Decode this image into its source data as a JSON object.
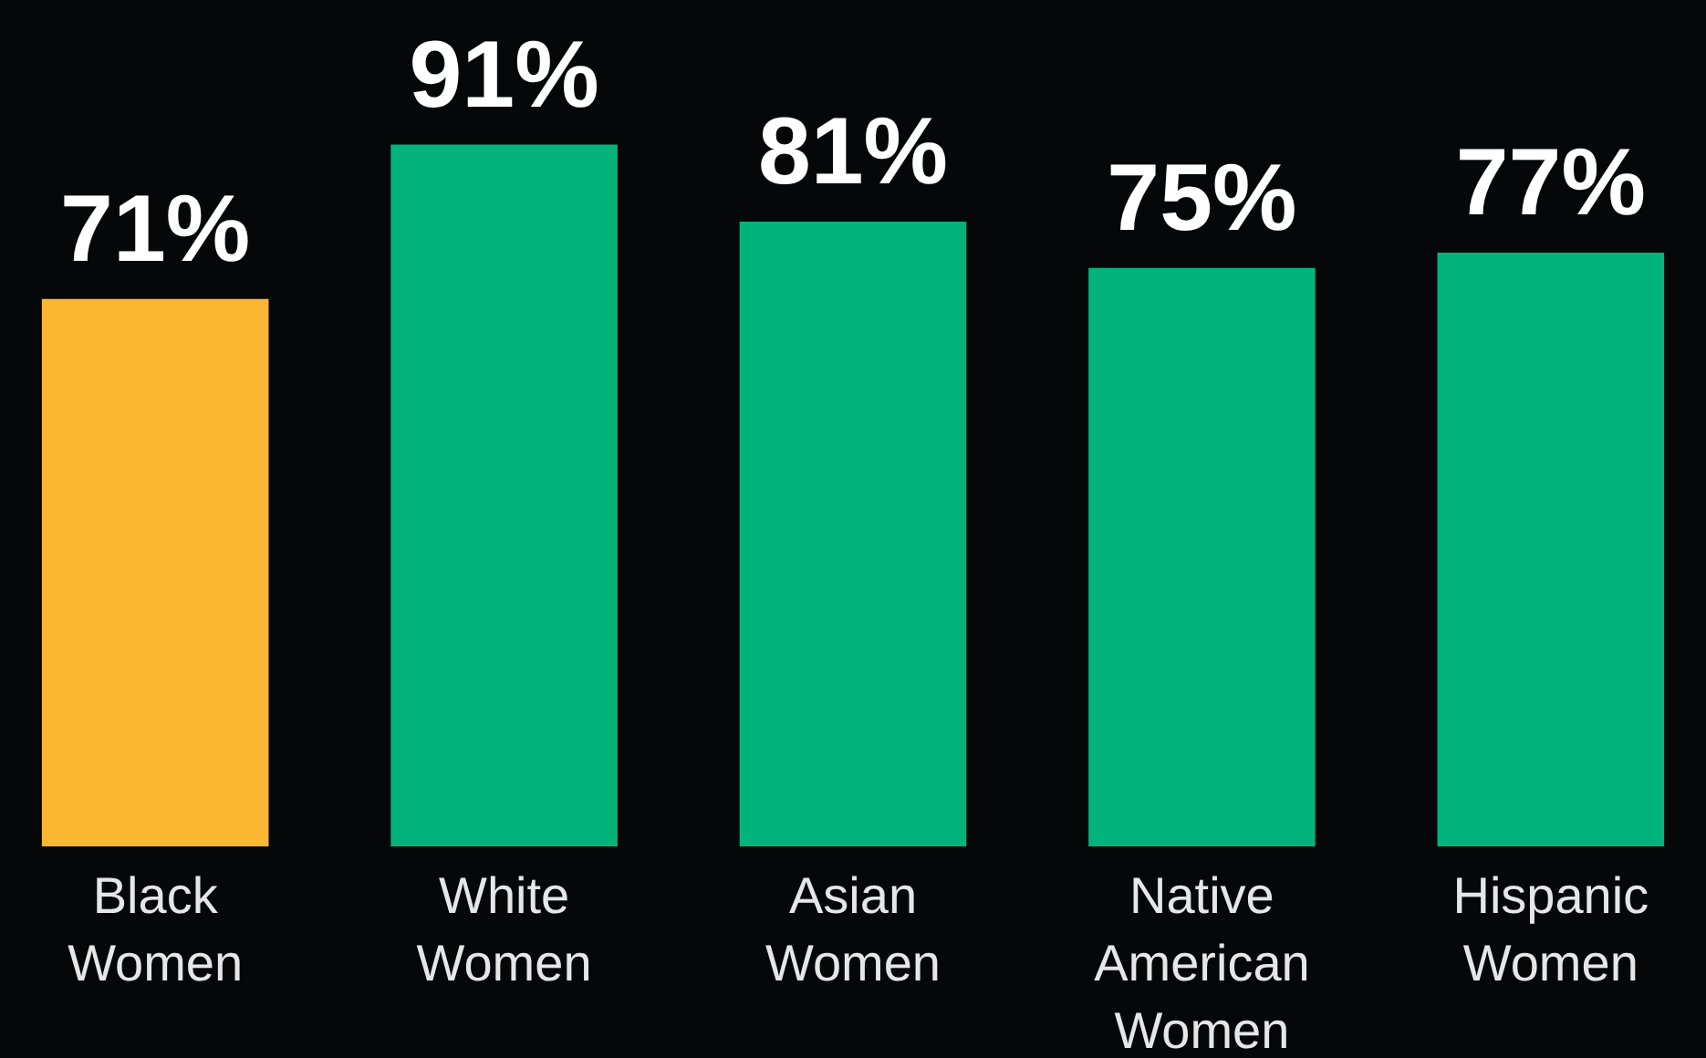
{
  "chart_data": {
    "type": "bar",
    "categories": [
      "Black Women",
      "White Women",
      "Asian Women",
      "Native American Women",
      "Hispanic Women"
    ],
    "values": [
      71,
      91,
      81,
      75,
      77
    ],
    "colors": [
      "#fbb731",
      "#02b47b",
      "#02b47b",
      "#02b47b",
      "#02b47b"
    ],
    "value_labels": [
      "71%",
      "91%",
      "81%",
      "75%",
      "77%"
    ]
  }
}
